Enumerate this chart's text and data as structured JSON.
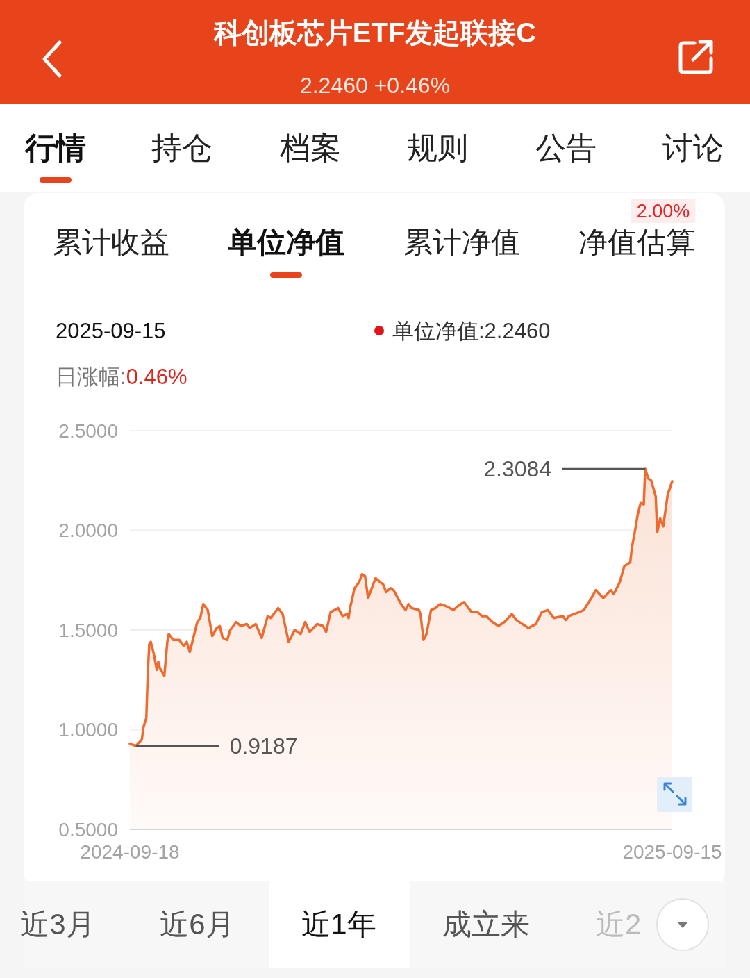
{
  "chart_data": {
    "type": "area",
    "title": "科创板芯片ETF发起联接C",
    "subtitle": "2.2460 +0.46%",
    "color": "#ef6a2e",
    "grid": "y",
    "xlim": [
      "2024-09-18",
      "2025-09-15"
    ],
    "xticks": [
      "2024-09-18",
      "2025-09-15"
    ],
    "ylim": [
      0.5,
      2.5
    ],
    "yticks": [
      {
        "value": 0.5,
        "label": "0.5000"
      },
      {
        "value": 1.0,
        "label": "1.0000"
      },
      {
        "value": 1.5,
        "label": "1.5000"
      },
      {
        "value": 2.0,
        "label": "2.0000"
      },
      {
        "value": 2.5,
        "label": "2.5000"
      }
    ],
    "x": [
      "2024-09-18",
      "2024-09-22",
      "2024-09-26",
      "2024-09-27",
      "2024-09-29",
      "2024-09-30",
      "2024-10-01",
      "2024-10-02",
      "2024-10-04",
      "2024-10-06",
      "2024-10-07",
      "2024-10-08",
      "2024-10-11",
      "2024-10-13",
      "2024-10-14",
      "2024-10-17",
      "2024-10-21",
      "2024-10-24",
      "2024-10-26",
      "2024-10-28",
      "2024-10-31",
      "2024-11-02",
      "2024-11-04",
      "2024-11-06",
      "2024-11-09",
      "2024-11-12",
      "2024-11-15",
      "2024-11-17",
      "2024-11-19",
      "2024-11-22",
      "2024-11-24",
      "2024-11-28",
      "2024-12-01",
      "2024-12-05",
      "2024-12-07",
      "2024-12-11",
      "2024-12-15",
      "2024-12-19",
      "2024-12-21",
      "2024-12-26",
      "2024-12-29",
      "2025-01-02",
      "2025-01-06",
      "2025-01-10",
      "2025-01-13",
      "2025-01-16",
      "2025-01-21",
      "2025-01-25",
      "2025-01-27",
      "2025-01-30",
      "2025-02-04",
      "2025-02-07",
      "2025-02-10",
      "2025-02-11",
      "2025-02-12",
      "2025-02-15",
      "2025-02-18",
      "2025-02-20",
      "2025-02-22",
      "2025-02-24",
      "2025-03-01",
      "2025-03-04",
      "2025-03-06",
      "2025-03-08",
      "2025-03-11",
      "2025-03-13",
      "2025-03-18",
      "2025-03-21",
      "2025-03-23",
      "2025-03-25",
      "2025-03-30",
      "2025-03-31",
      "2025-04-02",
      "2025-04-04",
      "2025-04-07",
      "2025-04-10",
      "2025-04-13",
      "2025-04-17",
      "2025-04-22",
      "2025-04-25",
      "2025-04-29",
      "2025-05-01",
      "2025-05-04",
      "2025-05-08",
      "2025-05-11",
      "2025-05-14",
      "2025-05-18",
      "2025-05-22",
      "2025-05-26",
      "2025-05-31",
      "2025-06-03",
      "2025-06-09",
      "2025-06-11",
      "2025-06-16",
      "2025-06-20",
      "2025-06-24",
      "2025-06-28",
      "2025-07-04",
      "2025-07-06",
      "2025-07-08",
      "2025-07-15",
      "2025-07-18",
      "2025-07-23",
      "2025-07-26",
      "2025-07-31",
      "2025-08-05",
      "2025-08-07",
      "2025-08-11",
      "2025-08-14",
      "2025-08-18",
      "2025-08-19",
      "2025-08-21",
      "2025-08-23",
      "2025-08-25",
      "2025-08-27",
      "2025-08-28",
      "2025-08-30",
      "2025-09-01",
      "2025-09-04",
      "2025-09-05",
      "2025-09-07",
      "2025-09-09",
      "2025-09-12",
      "2025-09-15"
    ],
    "values": [
      0.93,
      0.9187,
      0.95,
      1.01,
      1.06,
      1.29,
      1.43,
      1.44,
      1.38,
      1.3,
      1.34,
      1.31,
      1.27,
      1.44,
      1.48,
      1.45,
      1.45,
      1.42,
      1.44,
      1.39,
      1.48,
      1.54,
      1.56,
      1.63,
      1.6,
      1.47,
      1.51,
      1.52,
      1.46,
      1.45,
      1.5,
      1.54,
      1.52,
      1.53,
      1.51,
      1.53,
      1.46,
      1.57,
      1.56,
      1.61,
      1.58,
      1.44,
      1.5,
      1.48,
      1.54,
      1.49,
      1.53,
      1.52,
      1.49,
      1.59,
      1.61,
      1.57,
      1.58,
      1.56,
      1.61,
      1.71,
      1.74,
      1.78,
      1.77,
      1.66,
      1.76,
      1.74,
      1.73,
      1.69,
      1.71,
      1.7,
      1.63,
      1.6,
      1.63,
      1.61,
      1.6,
      1.58,
      1.45,
      1.48,
      1.6,
      1.61,
      1.63,
      1.62,
      1.6,
      1.62,
      1.64,
      1.62,
      1.59,
      1.59,
      1.57,
      1.57,
      1.54,
      1.52,
      1.54,
      1.58,
      1.55,
      1.52,
      1.51,
      1.53,
      1.59,
      1.6,
      1.56,
      1.57,
      1.55,
      1.57,
      1.59,
      1.6,
      1.66,
      1.7,
      1.66,
      1.7,
      1.68,
      1.74,
      1.82,
      1.84,
      1.91,
      1.99,
      2.08,
      2.14,
      2.13,
      2.3084,
      2.26,
      2.25,
      2.17,
      1.99,
      2.06,
      2.02,
      2.18,
      2.246
    ],
    "annotations": [
      "行情",
      "持仓",
      "档案",
      "规则",
      "公告",
      "讨论",
      "累计收益",
      "单位净值",
      "累计净值",
      "净值估算",
      "2.00%",
      "2025-09-15",
      "单位净值:2.2460",
      "日涨幅:",
      "0.46%",
      "2.3084",
      "0.9187",
      "近3月",
      "近6月",
      "近1年",
      "成立来",
      "近2"
    ]
  }
}
